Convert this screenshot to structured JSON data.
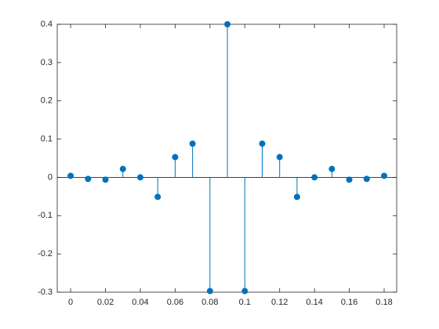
{
  "chart_data": {
    "type": "stem",
    "x": [
      0,
      0.01,
      0.02,
      0.03,
      0.04,
      0.05,
      0.06,
      0.07,
      0.08,
      0.09,
      0.1,
      0.11,
      0.12,
      0.13,
      0.14,
      0.15,
      0.16,
      0.17,
      0.18
    ],
    "values": [
      0.004,
      -0.004,
      -0.006,
      0.022,
      0,
      -0.051,
      0.053,
      0.088,
      -0.297,
      0.4,
      -0.297,
      0.088,
      0.053,
      -0.051,
      0,
      0.022,
      -0.006,
      -0.004,
      0.004
    ],
    "color": "#0072bd",
    "xlim": [
      -0.0077,
      0.1872
    ],
    "xticks": [
      0,
      0.02,
      0.04,
      0.06,
      0.08,
      0.1,
      0.12,
      0.14,
      0.16,
      0.18
    ],
    "ylim": [
      -0.3,
      0.4
    ],
    "yticks": [
      -0.3,
      -0.2,
      -0.1,
      0,
      0.1,
      0.2,
      0.3,
      0.4
    ],
    "grid": false
  }
}
